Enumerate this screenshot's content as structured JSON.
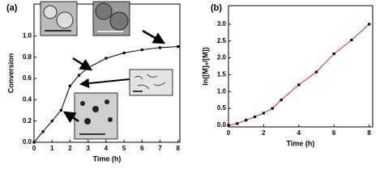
{
  "chart_data": [
    {
      "type": "line",
      "panel_label": "(a)",
      "xlabel": "Time (h)",
      "ylabel": "Conversion",
      "x": [
        0,
        0.5,
        1,
        1.5,
        2,
        2.5,
        3,
        4,
        5,
        6,
        7,
        8
      ],
      "values": [
        0,
        0.1,
        0.2,
        0.3,
        0.53,
        0.63,
        0.7,
        0.79,
        0.84,
        0.87,
        0.89,
        0.9
      ],
      "color": "#000000",
      "marker_color": "#000000",
      "xlim": [
        0,
        8.1
      ],
      "xticks": [
        0,
        1,
        2,
        3,
        4,
        5,
        6,
        7,
        8
      ],
      "ylim": [
        0,
        1.3
      ],
      "yticks": [
        {
          "value": 0,
          "label": "0.0"
        },
        0.2,
        0.4,
        0.6,
        0.8,
        {
          "value": 1,
          "label": "1.0"
        }
      ]
    },
    {
      "type": "line",
      "panel_label": "(b)",
      "xlabel": "Time (h)",
      "ylabel": "ln([M]₀/[M])",
      "x": [
        0,
        0.5,
        1,
        1.5,
        2,
        2.5,
        3,
        4,
        5,
        6,
        7,
        8
      ],
      "values": [
        0,
        0.05,
        0.15,
        0.25,
        0.36,
        0.5,
        0.75,
        1.2,
        1.58,
        2.12,
        2.53,
        3.0
      ],
      "color": "#d42a2a",
      "marker_color": "#000000",
      "xlim": [
        0,
        8.2
      ],
      "xticks": [
        0,
        2,
        4,
        6,
        8
      ],
      "ylim": [
        -0.05,
        3.55
      ],
      "yticks": [
        {
          "value": 0,
          "label": "0.0"
        },
        0.5,
        {
          "value": 1,
          "label": "1.0"
        },
        1.5,
        {
          "value": 2,
          "label": "2.0"
        },
        2.5,
        {
          "value": 3,
          "label": "3.0"
        }
      ]
    }
  ]
}
